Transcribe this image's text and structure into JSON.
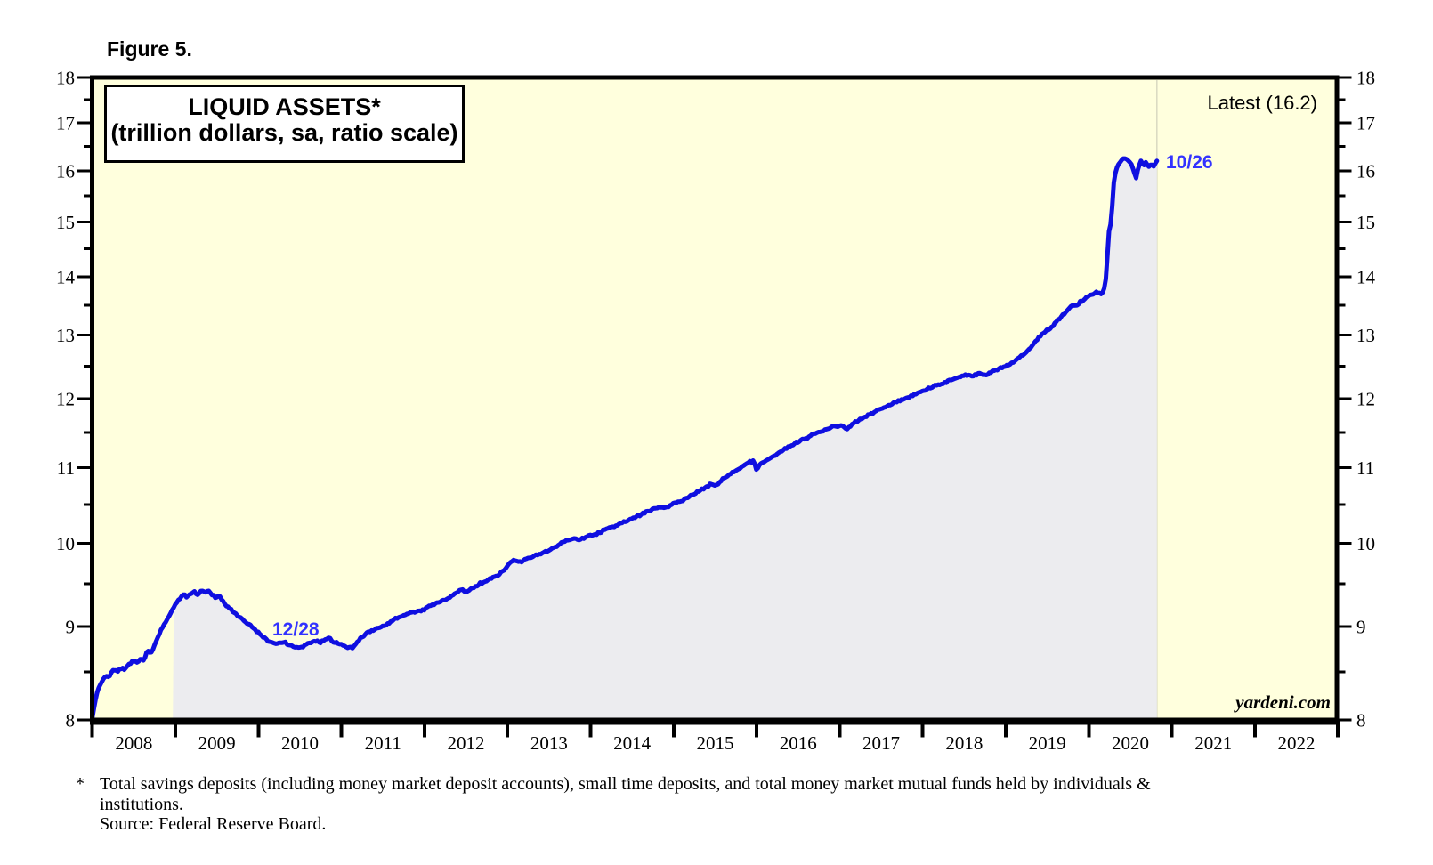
{
  "figure_label": "Figure 5.",
  "title_line1": "LIQUID ASSETS*",
  "title_line2": "(trillion dollars, sa, ratio scale)",
  "latest_label": "Latest (16.2)",
  "watermark": "yardeni.com",
  "annotations": {
    "end_label": "10/26",
    "trough_label": "12/28"
  },
  "footnote": {
    "marker": "*",
    "line1": "Total savings deposits (including money market deposit accounts), small time deposits, and total money market mutual funds held by individuals &",
    "line2": "institutions.",
    "source": "Source: Federal Reserve Board."
  },
  "colors": {
    "plot_bg": "#ffffdd",
    "area_fill": "#ececef",
    "line": "#0f0fe0",
    "annotation_blue": "#3333ff",
    "axis": "#000000",
    "end_guide": "rgba(130,130,130,0.30)"
  },
  "chart_data": {
    "type": "line",
    "title": "LIQUID ASSETS*",
    "subtitle": "(trillion dollars, sa, ratio scale)",
    "unit": "trillion dollars",
    "y_scale": "log",
    "ylim": [
      8,
      18
    ],
    "y_ticks": [
      8,
      9,
      10,
      11,
      12,
      13,
      14,
      15,
      16,
      17,
      18
    ],
    "x_range": [
      2008,
      2023
    ],
    "x_years": [
      2008,
      2009,
      2010,
      2011,
      2012,
      2013,
      2014,
      2015,
      2016,
      2017,
      2018,
      2019,
      2020,
      2021,
      2022
    ],
    "grid": false,
    "legend_position": "none",
    "latest_value": 16.2,
    "latest_date": "10/26",
    "trough_date": "12/28",
    "shaded_area": {
      "from_year": 2008.97,
      "to_year": 2020.82
    },
    "series": [
      {
        "name": "Liquid Assets",
        "points": [
          [
            2008.0,
            8.02
          ],
          [
            2008.02,
            8.12
          ],
          [
            2008.05,
            8.26
          ],
          [
            2008.09,
            8.36
          ],
          [
            2008.13,
            8.42
          ],
          [
            2008.17,
            8.46
          ],
          [
            2008.2,
            8.44
          ],
          [
            2008.24,
            8.51
          ],
          [
            2008.28,
            8.52
          ],
          [
            2008.31,
            8.5
          ],
          [
            2008.35,
            8.55
          ],
          [
            2008.39,
            8.53
          ],
          [
            2008.43,
            8.57
          ],
          [
            2008.47,
            8.61
          ],
          [
            2008.51,
            8.62
          ],
          [
            2008.55,
            8.6
          ],
          [
            2008.59,
            8.65
          ],
          [
            2008.62,
            8.62
          ],
          [
            2008.66,
            8.73
          ],
          [
            2008.7,
            8.7
          ],
          [
            2008.74,
            8.76
          ],
          [
            2008.78,
            8.87
          ],
          [
            2008.82,
            8.94
          ],
          [
            2008.86,
            9.02
          ],
          [
            2008.9,
            9.08
          ],
          [
            2008.95,
            9.17
          ],
          [
            2009.0,
            9.26
          ],
          [
            2009.05,
            9.32
          ],
          [
            2009.1,
            9.38
          ],
          [
            2009.14,
            9.34
          ],
          [
            2009.18,
            9.38
          ],
          [
            2009.22,
            9.41
          ],
          [
            2009.27,
            9.36
          ],
          [
            2009.31,
            9.42
          ],
          [
            2009.35,
            9.4
          ],
          [
            2009.4,
            9.41
          ],
          [
            2009.44,
            9.37
          ],
          [
            2009.49,
            9.34
          ],
          [
            2009.53,
            9.35
          ],
          [
            2009.57,
            9.3
          ],
          [
            2009.62,
            9.24
          ],
          [
            2009.66,
            9.2
          ],
          [
            2009.71,
            9.16
          ],
          [
            2009.75,
            9.12
          ],
          [
            2009.8,
            9.1
          ],
          [
            2009.85,
            9.05
          ],
          [
            2009.89,
            9.03
          ],
          [
            2009.94,
            8.98
          ],
          [
            2010.0,
            8.93
          ],
          [
            2010.06,
            8.88
          ],
          [
            2010.12,
            8.84
          ],
          [
            2010.18,
            8.82
          ],
          [
            2010.24,
            8.81
          ],
          [
            2010.3,
            8.83
          ],
          [
            2010.36,
            8.8
          ],
          [
            2010.43,
            8.77
          ],
          [
            2010.5,
            8.76
          ],
          [
            2010.56,
            8.79
          ],
          [
            2010.62,
            8.81
          ],
          [
            2010.68,
            8.84
          ],
          [
            2010.74,
            8.82
          ],
          [
            2010.8,
            8.85
          ],
          [
            2010.85,
            8.87
          ],
          [
            2010.9,
            8.83
          ],
          [
            2010.96,
            8.81
          ],
          [
            2011.02,
            8.79
          ],
          [
            2011.08,
            8.76
          ],
          [
            2011.14,
            8.77
          ],
          [
            2011.2,
            8.84
          ],
          [
            2011.27,
            8.9
          ],
          [
            2011.33,
            8.94
          ],
          [
            2011.4,
            8.97
          ],
          [
            2011.47,
            8.99
          ],
          [
            2011.53,
            9.02
          ],
          [
            2011.6,
            9.06
          ],
          [
            2011.67,
            9.1
          ],
          [
            2011.73,
            9.12
          ],
          [
            2011.8,
            9.15
          ],
          [
            2011.87,
            9.17
          ],
          [
            2011.93,
            9.18
          ],
          [
            2012.0,
            9.2
          ],
          [
            2012.08,
            9.24
          ],
          [
            2012.16,
            9.28
          ],
          [
            2012.24,
            9.31
          ],
          [
            2012.32,
            9.35
          ],
          [
            2012.4,
            9.4
          ],
          [
            2012.45,
            9.43
          ],
          [
            2012.5,
            9.4
          ],
          [
            2012.58,
            9.45
          ],
          [
            2012.66,
            9.5
          ],
          [
            2012.74,
            9.53
          ],
          [
            2012.82,
            9.57
          ],
          [
            2012.9,
            9.61
          ],
          [
            2012.97,
            9.68
          ],
          [
            2013.03,
            9.76
          ],
          [
            2013.1,
            9.79
          ],
          [
            2013.16,
            9.76
          ],
          [
            2013.23,
            9.8
          ],
          [
            2013.31,
            9.83
          ],
          [
            2013.39,
            9.87
          ],
          [
            2013.47,
            9.9
          ],
          [
            2013.55,
            9.94
          ],
          [
            2013.63,
            9.99
          ],
          [
            2013.71,
            10.03
          ],
          [
            2013.79,
            10.06
          ],
          [
            2013.87,
            10.04
          ],
          [
            2013.95,
            10.08
          ],
          [
            2014.03,
            10.1
          ],
          [
            2014.11,
            10.14
          ],
          [
            2014.19,
            10.18
          ],
          [
            2014.27,
            10.21
          ],
          [
            2014.35,
            10.25
          ],
          [
            2014.43,
            10.28
          ],
          [
            2014.51,
            10.32
          ],
          [
            2014.59,
            10.36
          ],
          [
            2014.67,
            10.4
          ],
          [
            2014.75,
            10.44
          ],
          [
            2014.82,
            10.47
          ],
          [
            2014.9,
            10.45
          ],
          [
            2014.97,
            10.5
          ],
          [
            2015.05,
            10.53
          ],
          [
            2015.13,
            10.57
          ],
          [
            2015.21,
            10.62
          ],
          [
            2015.29,
            10.67
          ],
          [
            2015.37,
            10.72
          ],
          [
            2015.45,
            10.77
          ],
          [
            2015.5,
            10.74
          ],
          [
            2015.58,
            10.83
          ],
          [
            2015.66,
            10.9
          ],
          [
            2015.74,
            10.95
          ],
          [
            2015.82,
            11.01
          ],
          [
            2015.89,
            11.07
          ],
          [
            2015.96,
            11.09
          ],
          [
            2016.0,
            10.97
          ],
          [
            2016.04,
            11.05
          ],
          [
            2016.12,
            11.1
          ],
          [
            2016.2,
            11.16
          ],
          [
            2016.28,
            11.22
          ],
          [
            2016.36,
            11.28
          ],
          [
            2016.44,
            11.33
          ],
          [
            2016.52,
            11.38
          ],
          [
            2016.6,
            11.42
          ],
          [
            2016.68,
            11.47
          ],
          [
            2016.76,
            11.5
          ],
          [
            2016.84,
            11.54
          ],
          [
            2016.92,
            11.58
          ],
          [
            2017.0,
            11.6
          ],
          [
            2017.1,
            11.55
          ],
          [
            2017.18,
            11.65
          ],
          [
            2017.26,
            11.7
          ],
          [
            2017.34,
            11.75
          ],
          [
            2017.42,
            11.8
          ],
          [
            2017.5,
            11.85
          ],
          [
            2017.58,
            11.89
          ],
          [
            2017.66,
            11.94
          ],
          [
            2017.74,
            11.98
          ],
          [
            2017.82,
            12.02
          ],
          [
            2017.9,
            12.06
          ],
          [
            2017.98,
            12.11
          ],
          [
            2018.06,
            12.15
          ],
          [
            2018.14,
            12.19
          ],
          [
            2018.22,
            12.22
          ],
          [
            2018.3,
            12.27
          ],
          [
            2018.38,
            12.3
          ],
          [
            2018.46,
            12.34
          ],
          [
            2018.54,
            12.37
          ],
          [
            2018.6,
            12.34
          ],
          [
            2018.68,
            12.39
          ],
          [
            2018.76,
            12.36
          ],
          [
            2018.84,
            12.43
          ],
          [
            2018.92,
            12.46
          ],
          [
            2019.0,
            12.51
          ],
          [
            2019.08,
            12.56
          ],
          [
            2019.16,
            12.63
          ],
          [
            2019.24,
            12.72
          ],
          [
            2019.32,
            12.83
          ],
          [
            2019.4,
            12.97
          ],
          [
            2019.48,
            13.06
          ],
          [
            2019.56,
            13.15
          ],
          [
            2019.64,
            13.27
          ],
          [
            2019.72,
            13.38
          ],
          [
            2019.76,
            13.45
          ],
          [
            2019.8,
            13.5
          ],
          [
            2019.85,
            13.48
          ],
          [
            2019.9,
            13.56
          ],
          [
            2019.95,
            13.6
          ],
          [
            2020.0,
            13.66
          ],
          [
            2020.05,
            13.7
          ],
          [
            2020.1,
            13.72
          ],
          [
            2020.14,
            13.69
          ],
          [
            2020.18,
            13.74
          ],
          [
            2020.21,
            14.0
          ],
          [
            2020.24,
            14.8
          ],
          [
            2020.27,
            15.0
          ],
          [
            2020.3,
            15.75
          ],
          [
            2020.33,
            16.05
          ],
          [
            2020.36,
            16.15
          ],
          [
            2020.4,
            16.22
          ],
          [
            2020.44,
            16.27
          ],
          [
            2020.48,
            16.2
          ],
          [
            2020.51,
            16.15
          ],
          [
            2020.54,
            16.0
          ],
          [
            2020.57,
            15.86
          ],
          [
            2020.6,
            16.1
          ],
          [
            2020.63,
            16.2
          ],
          [
            2020.66,
            16.12
          ],
          [
            2020.69,
            16.17
          ],
          [
            2020.72,
            16.08
          ],
          [
            2020.75,
            16.13
          ],
          [
            2020.78,
            16.1
          ],
          [
            2020.82,
            16.2
          ]
        ]
      }
    ]
  }
}
